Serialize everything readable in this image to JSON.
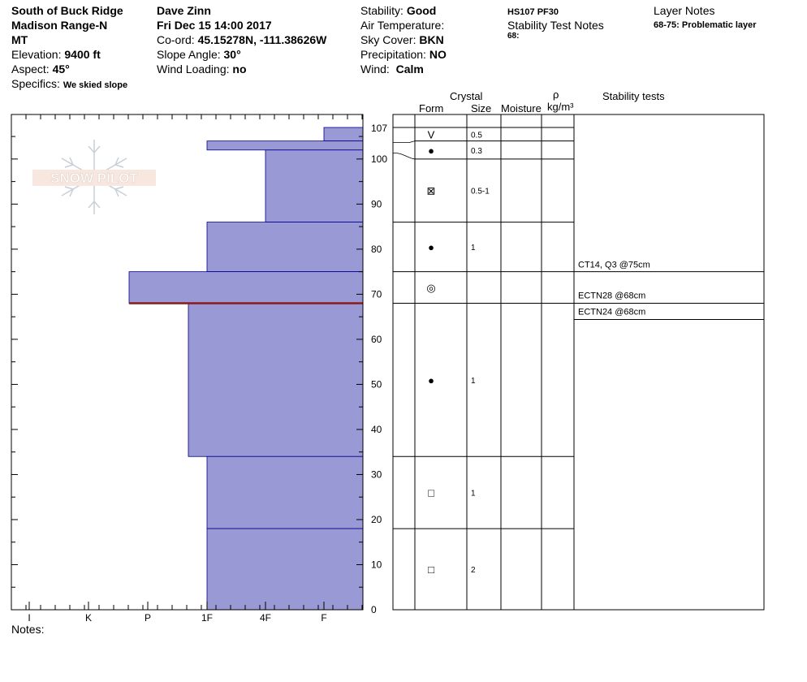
{
  "header": {
    "location": "South of Buck Ridge",
    "range": "Madison Range-N",
    "state": "MT",
    "elevation_label": "Elevation:",
    "elevation_value": "9400 ft",
    "aspect_label": "Aspect:",
    "aspect_value": "45°",
    "specifics_label": "Specifics:",
    "specifics_value": "We skied slope",
    "observer": "Dave Zinn",
    "datetime": "Fri Dec 15 14:00 2017",
    "coord_label": "Co-ord:",
    "coord_value": "45.15278N, -111.38626W",
    "slope_label": "Slope Angle:",
    "slope_value": "30°",
    "windload_label": "Wind Loading:",
    "windload_value": "no",
    "stability_label": "Stability:",
    "stability_value": "Good",
    "airtemp_label": "Air Temperature:",
    "sky_label": "Sky Cover:",
    "sky_value": "BKN",
    "precip_label": "Precipitation:",
    "precip_value": "NO",
    "wind_label": "Wind:",
    "wind_value": "Calm",
    "hs_pf": "HS107  PF30",
    "stab_notes_title": "Stability Test Notes",
    "stab_notes_text": "68:",
    "layer_notes_title": "Layer Notes",
    "layer_notes_text": "68-75: Problematic layer"
  },
  "columns": {
    "crystal": "Crystal",
    "form": "Form",
    "size": "Size",
    "moisture": "Moisture",
    "rho": "ρ",
    "density_unit": "kg/m³",
    "stability_tests": "Stability tests"
  },
  "logo_text": "SNOW PILOT",
  "notes_label": "Notes:",
  "colors": {
    "layer_fill": "#9999d6",
    "layer_edge": "#00008b",
    "critical_layer": "#8b1a1a"
  },
  "chart_data": {
    "type": "bar",
    "orientation": "horizontal",
    "description_of_axes": "hand hardness profile",
    "y_ticks": [
      0,
      10,
      20,
      30,
      40,
      50,
      60,
      70,
      80,
      90,
      100,
      107
    ],
    "ylim": [
      0,
      107
    ],
    "x_categories": [
      "I",
      "K",
      "P",
      "1F",
      "4F",
      "F"
    ],
    "hardness_layers": [
      {
        "bottom": 104,
        "top": 107,
        "hardness": "F+"
      },
      {
        "bottom": 102,
        "top": 104,
        "hardness": "1F"
      },
      {
        "bottom": 86,
        "top": 102,
        "hardness": "4F"
      },
      {
        "bottom": 75,
        "top": 86,
        "hardness": "1F"
      },
      {
        "bottom": 68,
        "top": 75,
        "hardness": "P+"
      },
      {
        "bottom": 34,
        "top": 68,
        "hardness": "1F+"
      },
      {
        "bottom": 18,
        "top": 34,
        "hardness": "1F"
      },
      {
        "bottom": 0,
        "top": 18,
        "hardness": "1F"
      }
    ],
    "critical_layer_height": 68,
    "grain_layers": [
      {
        "bottom": 104,
        "top": 107,
        "form": "V",
        "size": "0.5"
      },
      {
        "bottom": 100,
        "top": 104,
        "form": "●",
        "size": "0.3"
      },
      {
        "bottom": 86,
        "top": 100,
        "form": "⊠",
        "size": "0.5-1"
      },
      {
        "bottom": 75,
        "top": 86,
        "form": "●",
        "size": "1"
      },
      {
        "bottom": 68,
        "top": 75,
        "form": "◎",
        "size": ""
      },
      {
        "bottom": 34,
        "top": 68,
        "form": "●",
        "size": "1"
      },
      {
        "bottom": 18,
        "top": 34,
        "form": "□",
        "size": "1"
      },
      {
        "bottom": 0,
        "top": 18,
        "form": "□",
        "size": "2"
      }
    ],
    "stability_tests": [
      {
        "label": "CT14, Q3 @75cm",
        "height": 75
      },
      {
        "label": "ECTN28 @68cm",
        "height": 68
      },
      {
        "label": "ECTN24 @68cm",
        "height": 68
      }
    ]
  }
}
